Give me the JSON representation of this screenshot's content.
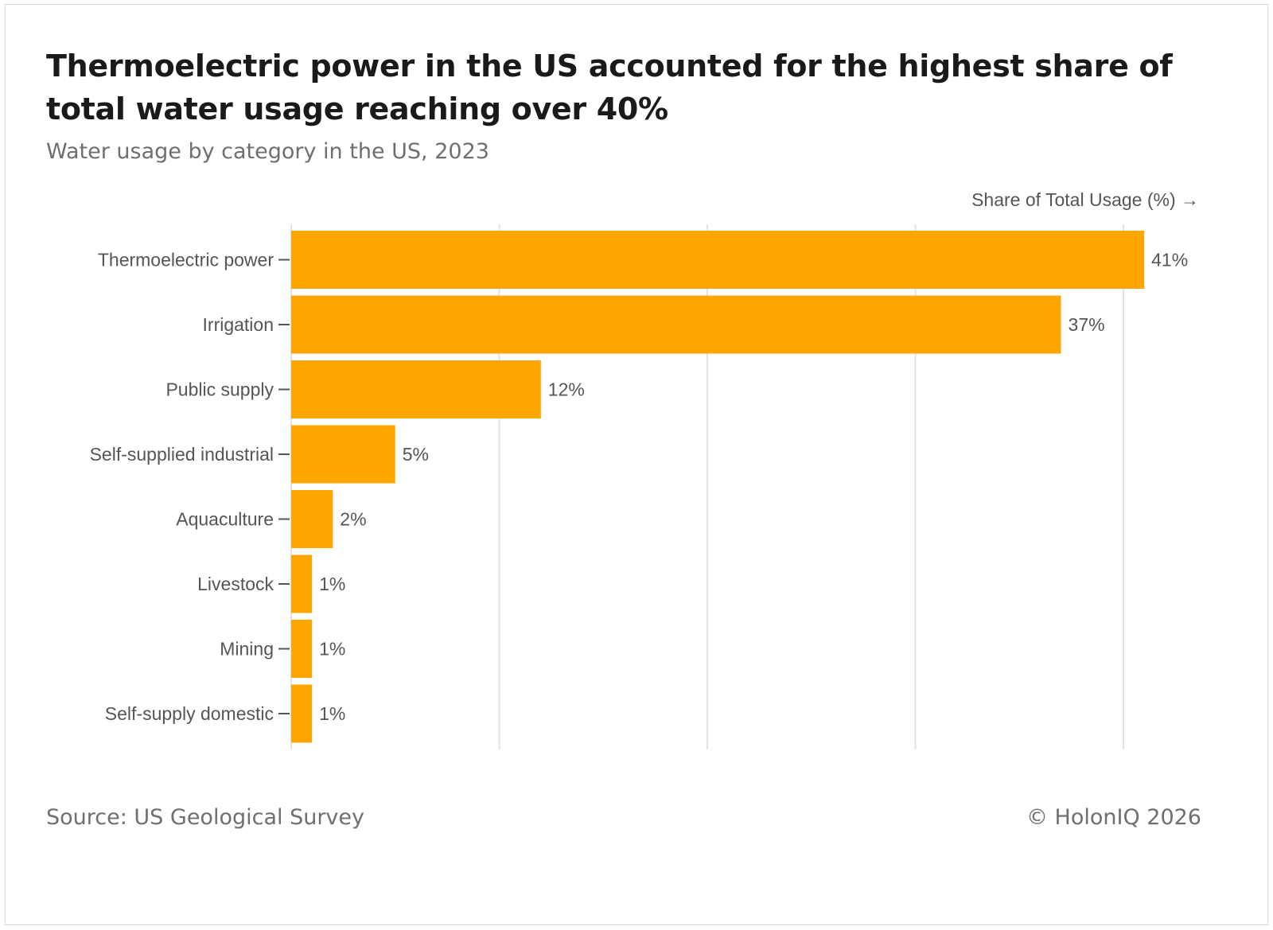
{
  "header": {
    "title": "Thermoelectric power in the US accounted for the highest share of total water usage reaching over 40%",
    "subtitle": "Water usage by category in the US, 2023"
  },
  "footer": {
    "source": "Source: US Geological Survey",
    "copyright": "© HolonIQ 2026"
  },
  "colors": {
    "bar": "#FFA500",
    "grid": "#e3e3e3",
    "tick": "#555555"
  },
  "chart_data": {
    "type": "bar",
    "orientation": "horizontal",
    "title": "Thermoelectric power in the US accounted for the highest share of total water usage reaching over 40%",
    "subtitle": "Water usage by category in the US, 2023",
    "xlabel": "Share of Total Usage (%) →",
    "ylabel": "",
    "xlim": [
      0,
      42
    ],
    "gridlines_at": [
      0,
      10,
      20,
      30,
      40
    ],
    "grid": true,
    "categories": [
      "Thermoelectric power",
      "Irrigation",
      "Public supply",
      "Self-supplied industrial",
      "Aquaculture",
      "Livestock",
      "Mining",
      "Self-supply domestic"
    ],
    "values": [
      41,
      37,
      12,
      5,
      2,
      1,
      1,
      1
    ],
    "value_labels": [
      "41%",
      "37%",
      "12%",
      "5%",
      "2%",
      "1%",
      "1%",
      "1%"
    ]
  }
}
